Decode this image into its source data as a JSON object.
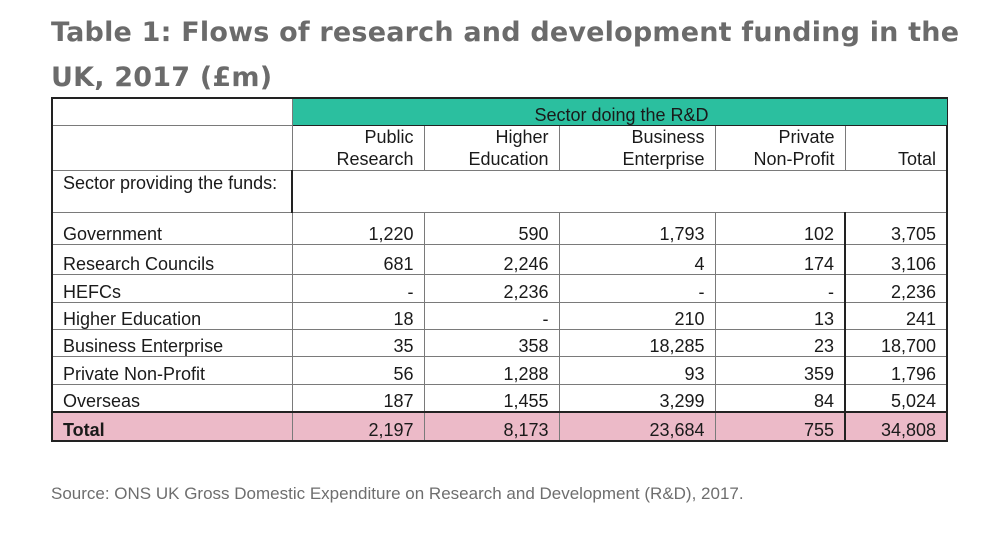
{
  "title": "Table 1: Flows of research and development funding in the UK, 2017 (£m)",
  "table": {
    "sector_doing": "Sector doing the R&D",
    "columns": [
      {
        "line1": "Public",
        "line2": "Research"
      },
      {
        "line1": "Higher",
        "line2": "Education"
      },
      {
        "line1": "Business",
        "line2": "Enterprise"
      },
      {
        "line1": "Private",
        "line2": "Non-Profit"
      },
      {
        "line1": "",
        "line2": "Total"
      }
    ],
    "sector_providing": "Sector providing the funds:",
    "rows": [
      {
        "label": "Government",
        "values": [
          "1,220",
          "590",
          "1,793",
          "102",
          "3,705"
        ]
      },
      {
        "label": "Research Councils",
        "values": [
          "681",
          "2,246",
          "4",
          "174",
          "3,106"
        ]
      },
      {
        "label": "HEFCs",
        "values": [
          "-",
          "2,236",
          "-",
          "-",
          "2,236"
        ]
      },
      {
        "label": "Higher Education",
        "values": [
          "18",
          "-",
          "210",
          "13",
          "241"
        ]
      },
      {
        "label": "Business Enterprise",
        "values": [
          "35",
          "358",
          "18,285",
          "23",
          "18,700"
        ]
      },
      {
        "label": "Private Non-Profit",
        "values": [
          "56",
          "1,288",
          "93",
          "359",
          "1,796"
        ]
      },
      {
        "label": "Overseas",
        "values": [
          "187",
          "1,455",
          "3,299",
          "84",
          "5,024"
        ]
      }
    ],
    "total": {
      "label": "Total",
      "values": [
        "2,197",
        "8,173",
        "23,684",
        "755",
        "34,808"
      ]
    }
  },
  "source": "Source: ONS UK Gross Domestic Expenditure on Research and Development (R&D), 2017."
}
